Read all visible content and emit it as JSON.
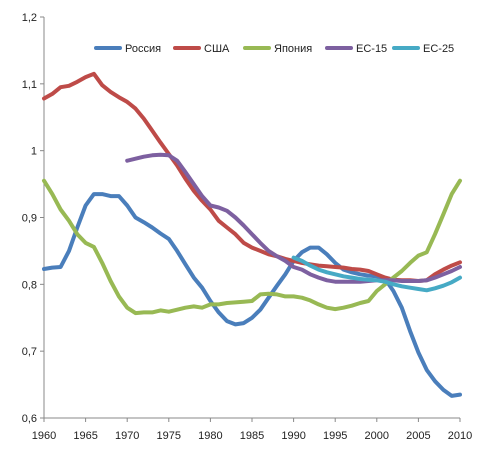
{
  "chart_data": {
    "type": "line",
    "title": "",
    "xlabel": "",
    "ylabel": "",
    "xlim": [
      1960,
      2010
    ],
    "ylim": [
      0.6,
      1.2
    ],
    "grid": false,
    "legend_position": "top-right",
    "x_ticks": [
      "1960",
      "1965",
      "1970",
      "1975",
      "1980",
      "1985",
      "1990",
      "1995",
      "2000",
      "2005",
      "2010"
    ],
    "y_ticks": [
      "0,6",
      "0,7",
      "0,8",
      "0,9",
      "1",
      "1,1",
      "1,2"
    ],
    "series": [
      {
        "name": "Россия",
        "color": "#4a7ebb",
        "points": [
          [
            1960,
            0.823
          ],
          [
            1961,
            0.825
          ],
          [
            1962,
            0.826
          ],
          [
            1963,
            0.85
          ],
          [
            1964,
            0.885
          ],
          [
            1965,
            0.918
          ],
          [
            1966,
            0.935
          ],
          [
            1967,
            0.935
          ],
          [
            1968,
            0.932
          ],
          [
            1969,
            0.932
          ],
          [
            1970,
            0.918
          ],
          [
            1971,
            0.9
          ],
          [
            1972,
            0.893
          ],
          [
            1973,
            0.885
          ],
          [
            1974,
            0.876
          ],
          [
            1975,
            0.868
          ],
          [
            1976,
            0.85
          ],
          [
            1977,
            0.83
          ],
          [
            1978,
            0.81
          ],
          [
            1979,
            0.795
          ],
          [
            1980,
            0.775
          ],
          [
            1981,
            0.758
          ],
          [
            1982,
            0.745
          ],
          [
            1983,
            0.74
          ],
          [
            1984,
            0.742
          ],
          [
            1985,
            0.75
          ],
          [
            1986,
            0.762
          ],
          [
            1987,
            0.78
          ],
          [
            1988,
            0.798
          ],
          [
            1989,
            0.815
          ],
          [
            1990,
            0.835
          ],
          [
            1991,
            0.848
          ],
          [
            1992,
            0.855
          ],
          [
            1993,
            0.855
          ],
          [
            1994,
            0.845
          ],
          [
            1995,
            0.832
          ],
          [
            1996,
            0.822
          ],
          [
            1997,
            0.818
          ],
          [
            1998,
            0.815
          ],
          [
            1999,
            0.813
          ],
          [
            2000,
            0.812
          ],
          [
            2001,
            0.808
          ],
          [
            2002,
            0.79
          ],
          [
            2003,
            0.765
          ],
          [
            2004,
            0.73
          ],
          [
            2005,
            0.698
          ],
          [
            2006,
            0.672
          ],
          [
            2007,
            0.655
          ],
          [
            2008,
            0.642
          ],
          [
            2009,
            0.633
          ],
          [
            2010,
            0.635
          ]
        ]
      },
      {
        "name": "США",
        "color": "#be4b48",
        "points": [
          [
            1960,
            1.078
          ],
          [
            1961,
            1.085
          ],
          [
            1962,
            1.095
          ],
          [
            1963,
            1.097
          ],
          [
            1964,
            1.103
          ],
          [
            1965,
            1.11
          ],
          [
            1966,
            1.115
          ],
          [
            1967,
            1.098
          ],
          [
            1968,
            1.088
          ],
          [
            1969,
            1.08
          ],
          [
            1970,
            1.073
          ],
          [
            1971,
            1.063
          ],
          [
            1972,
            1.048
          ],
          [
            1973,
            1.03
          ],
          [
            1974,
            1.012
          ],
          [
            1975,
            0.995
          ],
          [
            1976,
            0.978
          ],
          [
            1977,
            0.958
          ],
          [
            1978,
            0.94
          ],
          [
            1979,
            0.925
          ],
          [
            1980,
            0.912
          ],
          [
            1981,
            0.895
          ],
          [
            1982,
            0.885
          ],
          [
            1983,
            0.875
          ],
          [
            1984,
            0.862
          ],
          [
            1985,
            0.855
          ],
          [
            1986,
            0.85
          ],
          [
            1987,
            0.845
          ],
          [
            1988,
            0.842
          ],
          [
            1989,
            0.838
          ],
          [
            1990,
            0.835
          ],
          [
            1991,
            0.832
          ],
          [
            1992,
            0.83
          ],
          [
            1993,
            0.828
          ],
          [
            1994,
            0.827
          ],
          [
            1995,
            0.826
          ],
          [
            1996,
            0.825
          ],
          [
            1997,
            0.823
          ],
          [
            1998,
            0.822
          ],
          [
            1999,
            0.82
          ],
          [
            2000,
            0.815
          ],
          [
            2001,
            0.81
          ],
          [
            2002,
            0.807
          ],
          [
            2003,
            0.806
          ],
          [
            2004,
            0.806
          ],
          [
            2005,
            0.805
          ],
          [
            2006,
            0.806
          ],
          [
            2007,
            0.815
          ],
          [
            2008,
            0.822
          ],
          [
            2009,
            0.828
          ],
          [
            2010,
            0.833
          ]
        ]
      },
      {
        "name": "Япония",
        "color": "#98b954",
        "points": [
          [
            1960,
            0.955
          ],
          [
            1961,
            0.935
          ],
          [
            1962,
            0.912
          ],
          [
            1963,
            0.895
          ],
          [
            1964,
            0.875
          ],
          [
            1965,
            0.862
          ],
          [
            1966,
            0.856
          ],
          [
            1967,
            0.832
          ],
          [
            1968,
            0.805
          ],
          [
            1969,
            0.782
          ],
          [
            1970,
            0.765
          ],
          [
            1971,
            0.757
          ],
          [
            1972,
            0.758
          ],
          [
            1973,
            0.758
          ],
          [
            1974,
            0.761
          ],
          [
            1975,
            0.759
          ],
          [
            1976,
            0.762
          ],
          [
            1977,
            0.765
          ],
          [
            1978,
            0.767
          ],
          [
            1979,
            0.765
          ],
          [
            1980,
            0.77
          ],
          [
            1981,
            0.77
          ],
          [
            1982,
            0.772
          ],
          [
            1983,
            0.773
          ],
          [
            1984,
            0.774
          ],
          [
            1985,
            0.775
          ],
          [
            1986,
            0.785
          ],
          [
            1987,
            0.786
          ],
          [
            1988,
            0.785
          ],
          [
            1989,
            0.782
          ],
          [
            1990,
            0.782
          ],
          [
            1991,
            0.78
          ],
          [
            1992,
            0.776
          ],
          [
            1993,
            0.77
          ],
          [
            1994,
            0.765
          ],
          [
            1995,
            0.763
          ],
          [
            1996,
            0.765
          ],
          [
            1997,
            0.768
          ],
          [
            1998,
            0.772
          ],
          [
            1999,
            0.775
          ],
          [
            2000,
            0.79
          ],
          [
            2001,
            0.8
          ],
          [
            2002,
            0.81
          ],
          [
            2003,
            0.82
          ],
          [
            2004,
            0.832
          ],
          [
            2005,
            0.843
          ],
          [
            2006,
            0.848
          ],
          [
            2007,
            0.875
          ],
          [
            2008,
            0.905
          ],
          [
            2009,
            0.935
          ],
          [
            2010,
            0.955
          ]
        ]
      },
      {
        "name": "ЕС-15",
        "color": "#7d60a0",
        "points": [
          [
            1970,
            0.985
          ],
          [
            1971,
            0.988
          ],
          [
            1972,
            0.991
          ],
          [
            1973,
            0.993
          ],
          [
            1974,
            0.994
          ],
          [
            1975,
            0.993
          ],
          [
            1976,
            0.985
          ],
          [
            1977,
            0.968
          ],
          [
            1978,
            0.95
          ],
          [
            1979,
            0.932
          ],
          [
            1980,
            0.918
          ],
          [
            1981,
            0.915
          ],
          [
            1982,
            0.91
          ],
          [
            1983,
            0.9
          ],
          [
            1984,
            0.888
          ],
          [
            1985,
            0.875
          ],
          [
            1986,
            0.862
          ],
          [
            1987,
            0.85
          ],
          [
            1988,
            0.842
          ],
          [
            1989,
            0.835
          ],
          [
            1990,
            0.826
          ],
          [
            1991,
            0.822
          ],
          [
            1992,
            0.815
          ],
          [
            1993,
            0.81
          ],
          [
            1994,
            0.806
          ],
          [
            1995,
            0.804
          ],
          [
            1996,
            0.804
          ],
          [
            1997,
            0.804
          ],
          [
            1998,
            0.804
          ],
          [
            1999,
            0.805
          ],
          [
            2000,
            0.806
          ],
          [
            2001,
            0.806
          ],
          [
            2002,
            0.806
          ],
          [
            2003,
            0.805
          ],
          [
            2004,
            0.805
          ],
          [
            2005,
            0.805
          ],
          [
            2006,
            0.806
          ],
          [
            2007,
            0.81
          ],
          [
            2008,
            0.815
          ],
          [
            2009,
            0.82
          ],
          [
            2010,
            0.826
          ]
        ]
      },
      {
        "name": "ЕС-25",
        "color": "#46aac5",
        "points": [
          [
            1990,
            0.84
          ],
          [
            1991,
            0.835
          ],
          [
            1992,
            0.828
          ],
          [
            1993,
            0.822
          ],
          [
            1994,
            0.818
          ],
          [
            1995,
            0.815
          ],
          [
            1996,
            0.812
          ],
          [
            1997,
            0.81
          ],
          [
            1998,
            0.808
          ],
          [
            1999,
            0.807
          ],
          [
            2000,
            0.806
          ],
          [
            2001,
            0.804
          ],
          [
            2002,
            0.8
          ],
          [
            2003,
            0.797
          ],
          [
            2004,
            0.795
          ],
          [
            2005,
            0.793
          ],
          [
            2006,
            0.791
          ],
          [
            2007,
            0.794
          ],
          [
            2008,
            0.798
          ],
          [
            2009,
            0.803
          ],
          [
            2010,
            0.81
          ]
        ]
      }
    ]
  }
}
